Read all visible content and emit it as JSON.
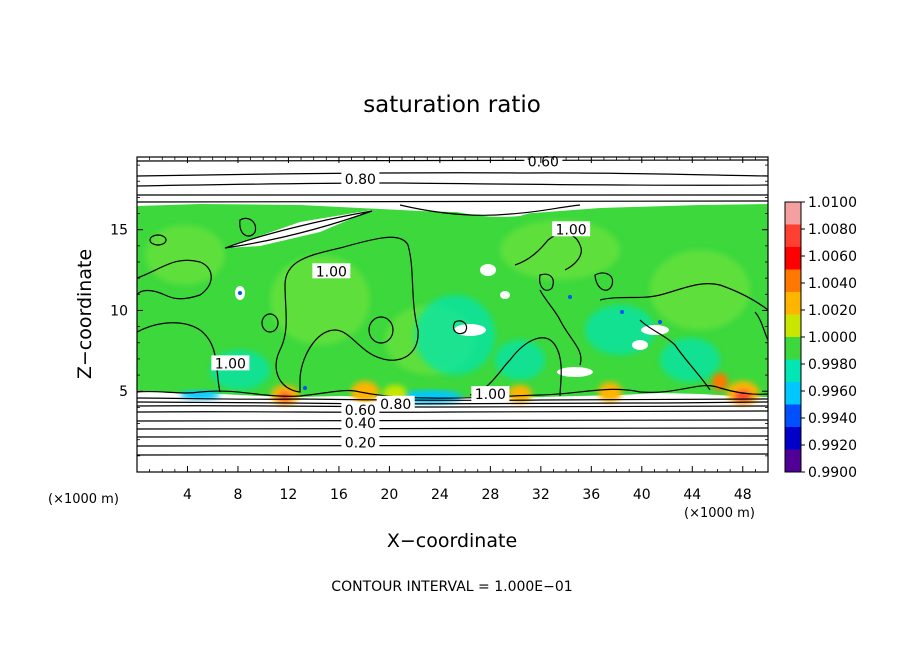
{
  "chart_data": {
    "type": "heatmap",
    "title": "saturation ratio",
    "xlabel": "X−coordinate",
    "ylabel": "Z−coordinate",
    "x_unit_left": "(×1000 m)",
    "x_unit_right": "(×1000 m)",
    "xlim": [
      0,
      50
    ],
    "ylim": [
      0,
      19.5
    ],
    "x_ticks": [
      4,
      8,
      12,
      16,
      20,
      24,
      28,
      32,
      36,
      40,
      44,
      48
    ],
    "y_ticks": [
      5,
      10,
      15
    ],
    "footer": "CONTOUR INTERVAL = 1.000E−01",
    "contour_interval": 0.1,
    "colorbar": {
      "ticks": [
        "1.0100",
        "1.0080",
        "1.0060",
        "1.0040",
        "1.0020",
        "1.0000",
        "0.9980",
        "0.9960",
        "0.9940",
        "0.9920",
        "0.9900"
      ],
      "colors": [
        "#f4a0a0",
        "#ff4030",
        "#ff0000",
        "#ff7800",
        "#ffb400",
        "#c8e600",
        "#3cd83c",
        "#00e6b4",
        "#00c8ff",
        "#0050ff",
        "#0000c8",
        "#500096"
      ]
    },
    "contour_labels": [
      {
        "text": "0.60",
        "x": 32.2,
        "z": 19.1
      },
      {
        "text": "0.80",
        "x": 17.7,
        "z": 18.0
      },
      {
        "text": "1.00",
        "x": 15.4,
        "z": 12.3
      },
      {
        "text": "1.00",
        "x": 34.4,
        "z": 14.9
      },
      {
        "text": "1.00",
        "x": 7.4,
        "z": 6.6
      },
      {
        "text": "1.00",
        "x": 28.0,
        "z": 4.7
      },
      {
        "text": "0.80",
        "x": 20.5,
        "z": 4.1
      },
      {
        "text": "0.60",
        "x": 17.7,
        "z": 3.7
      },
      {
        "text": "0.40",
        "x": 17.7,
        "z": 2.9
      },
      {
        "text": "0.20",
        "x": 17.7,
        "z": 1.7
      }
    ]
  }
}
